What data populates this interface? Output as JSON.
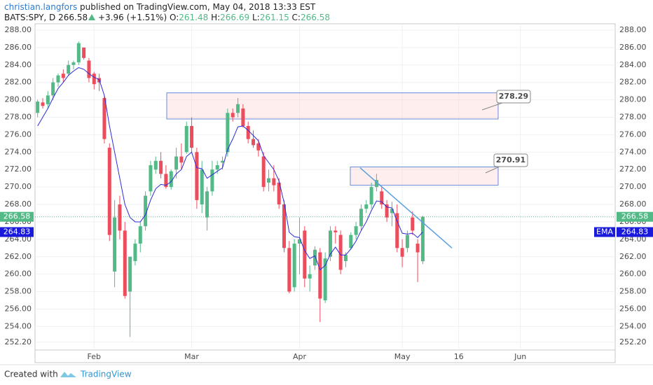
{
  "header": {
    "author": "christian.langfors",
    "published": "published on TradingView.com, May 04, 2018 13:33 EST",
    "symbol": "BATS:SPY, D",
    "change": "+3.96 (+1.51%)",
    "o": "O:",
    "h": "H:",
    "l": "L:",
    "c": "C:"
  },
  "footer": {
    "created": "Created with",
    "brand": "TradingView"
  },
  "chart_data": {
    "type": "candlestick",
    "categories": [
      null,
      null,
      null,
      null,
      null,
      null,
      null,
      null,
      null,
      null,
      null,
      "Feb",
      null,
      null,
      null,
      null,
      null,
      null,
      null,
      null,
      null,
      null,
      null,
      null,
      null,
      null,
      null,
      null,
      null,
      null,
      "Mar",
      null,
      null,
      null,
      null,
      null,
      null,
      null,
      null,
      null,
      null,
      null,
      null,
      null,
      null,
      null,
      null,
      null,
      null,
      null,
      null,
      "Apr",
      null,
      null,
      null,
      null,
      null,
      null,
      null,
      null,
      null,
      null,
      null,
      null,
      null,
      null,
      null,
      null,
      null,
      null,
      null,
      "May",
      null,
      null,
      null,
      null,
      null,
      null,
      null,
      null,
      null,
      null,
      "16",
      null,
      null,
      null,
      null,
      null,
      null,
      null,
      null,
      null,
      null,
      null,
      "Jun"
    ],
    "open": [
      278.5,
      279.7,
      279.5,
      280.5,
      282,
      283,
      283,
      284,
      284.3,
      286,
      284.5,
      283,
      282.5,
      280.2,
      274.5,
      260.3,
      268,
      265,
      258,
      261.5,
      263.5,
      265.5,
      269.5,
      272,
      273,
      271.5,
      270,
      272,
      273.5,
      274,
      277,
      274,
      268,
      266.5,
      269.5,
      272,
      272.8,
      274,
      278.5,
      278.5,
      279,
      277,
      275.5,
      275,
      273.5,
      270.5,
      271,
      270.5,
      268,
      263,
      258.5,
      263.5,
      265,
      259.5,
      261,
      262.5,
      257,
      262,
      265,
      264.5,
      261.5,
      263,
      264.5,
      265.5,
      267.5,
      268,
      270,
      269.5,
      268,
      267,
      267,
      263,
      263,
      266.5,
      263.5,
      261.48,
      null,
      null,
      null,
      null,
      null,
      null,
      null,
      null,
      null,
      null,
      null,
      null,
      null,
      null,
      null,
      null,
      null,
      null,
      null
    ],
    "high": [
      280,
      280.2,
      281,
      282.5,
      283,
      283.5,
      284.5,
      284.5,
      286.7,
      286,
      284.8,
      283.2,
      283,
      280.5,
      275,
      268.5,
      269,
      266,
      262,
      264,
      266,
      269.5,
      273,
      273.5,
      274,
      272.5,
      272,
      274.5,
      275,
      277.5,
      278,
      274.5,
      273,
      270,
      273,
      273,
      273.5,
      279,
      279,
      280.2,
      279.5,
      277.5,
      276.5,
      275.5,
      274,
      272,
      272.5,
      271,
      268.5,
      263.8,
      264,
      266.5,
      265.5,
      261,
      263.2,
      263,
      262.5,
      265.5,
      265.5,
      265,
      262.5,
      264.8,
      266,
      268,
      268.5,
      270.5,
      271.5,
      270,
      268.5,
      268.3,
      268,
      264,
      265,
      267.2,
      264,
      266.69,
      null,
      null,
      null,
      null,
      null,
      null,
      null,
      null,
      null,
      null,
      null,
      null,
      null,
      null,
      null,
      null,
      null,
      null,
      null
    ],
    "low": [
      278,
      279,
      279,
      280,
      281.5,
      282,
      282.8,
      283.5,
      284,
      284.6,
      282,
      281.2,
      281,
      275,
      263.8,
      258.5,
      264,
      257.2,
      252.8,
      261,
      262.5,
      265,
      269,
      271.5,
      271,
      269.8,
      269.7,
      271,
      272,
      273.8,
      274,
      267.5,
      267,
      265,
      269,
      271.5,
      272,
      273.5,
      277.5,
      278,
      276.8,
      275,
      274.5,
      273.5,
      269.5,
      269.5,
      269.5,
      267.5,
      262.5,
      257.8,
      258,
      260,
      258.5,
      258,
      260.5,
      254.5,
      256.7,
      261.5,
      263.5,
      260,
      260.8,
      262.8,
      264,
      265,
      267,
      267.5,
      269.5,
      267.5,
      266,
      265.5,
      262.5,
      260.8,
      262.5,
      264.5,
      259.1,
      261.15,
      null,
      null,
      null,
      null,
      null,
      null,
      null,
      null,
      null,
      null,
      null,
      null,
      null,
      null,
      null,
      null,
      null,
      null,
      null
    ],
    "close": [
      279.8,
      279.3,
      280.5,
      282,
      282.8,
      282.5,
      284,
      284.3,
      286.5,
      284.8,
      282.5,
      281.8,
      282,
      275.5,
      264.5,
      266.5,
      265,
      257.5,
      262,
      263.5,
      265.5,
      269,
      272.5,
      273,
      271.5,
      270,
      271.8,
      273.5,
      272.8,
      277,
      274.5,
      268.5,
      272,
      269.5,
      272,
      272.5,
      273,
      278.5,
      278,
      279.5,
      277,
      275.5,
      274.8,
      274.2,
      270,
      271,
      270.2,
      268,
      263,
      258,
      263.5,
      264,
      259.5,
      260,
      262.8,
      257.2,
      261.8,
      265,
      264.8,
      260.5,
      262.2,
      264.5,
      265.5,
      267.5,
      268,
      270,
      270.8,
      268,
      266.5,
      267.5,
      263,
      262,
      264.5,
      265,
      262.5,
      266.58,
      null,
      null,
      null,
      null,
      null,
      null,
      null,
      null,
      null,
      null,
      null,
      null,
      null,
      null,
      null,
      null,
      null,
      null,
      null
    ],
    "ema": {
      "name": "EMA",
      "color": "#2b2bd8",
      "values": [
        277,
        278,
        279,
        280.2,
        281.3,
        282,
        282.8,
        283.3,
        283.7,
        283.5,
        283,
        282.6,
        282.3,
        280.5,
        277,
        274,
        271,
        268,
        266.5,
        266,
        266,
        266.8,
        268.5,
        269.8,
        270.3,
        270.2,
        270.6,
        271.5,
        272,
        273.5,
        274,
        272.2,
        272.1,
        271,
        271.4,
        271.8,
        272.2,
        274.3,
        275.5,
        276.9,
        277,
        276.5,
        275.9,
        275.3,
        273.6,
        272.8,
        272,
        270.7,
        268.2,
        264.8,
        264.3,
        264.2,
        262.7,
        261.8,
        262.1,
        260.5,
        261,
        262.3,
        263.1,
        262.2,
        262.2,
        262.9,
        263.8,
        265,
        266,
        267.3,
        268.4,
        268.3,
        267.7,
        267.6,
        266.1,
        264.7,
        264.6,
        264.7,
        264.2,
        264.83,
        null,
        null,
        null,
        null,
        null,
        null,
        null,
        null,
        null,
        null,
        null,
        null,
        null,
        null,
        null,
        null,
        null,
        null,
        null
      ]
    },
    "up_color": "#53b987",
    "down_color": "#eb4d5c",
    "ylim": [
      251.3,
      288.4
    ],
    "yticks": [
      {
        "value": 288,
        "label": "288.00"
      },
      {
        "value": 286,
        "label": "286.00"
      },
      {
        "value": 284,
        "label": "284.00"
      },
      {
        "value": 282,
        "label": "282.00"
      },
      {
        "value": 280,
        "label": "280.00"
      },
      {
        "value": 278,
        "label": "278.00"
      },
      {
        "value": 276,
        "label": "276.00"
      },
      {
        "value": 274,
        "label": "274.00"
      },
      {
        "value": 272,
        "label": "272.00"
      },
      {
        "value": 270,
        "label": "270.00"
      },
      {
        "value": 268,
        "label": "268.00"
      },
      {
        "value": 266,
        "label": "266.00"
      },
      {
        "value": 264,
        "label": "264.00"
      },
      {
        "value": 262,
        "label": "262.00"
      },
      {
        "value": 260,
        "label": "260.00"
      },
      {
        "value": 258,
        "label": "258.00"
      },
      {
        "value": 256,
        "label": "256.00"
      },
      {
        "value": 254,
        "label": "254.00"
      },
      {
        "value": 252.2,
        "label": "252.20"
      }
    ],
    "grid": true,
    "zones": [
      {
        "top": 280.8,
        "bottom": 277.8
      },
      {
        "top": 272.3,
        "bottom": 270.2
      }
    ],
    "trendline": {
      "start": 272.2,
      "end": 263.0
    },
    "callouts": [
      278.29,
      270.91
    ]
  }
}
